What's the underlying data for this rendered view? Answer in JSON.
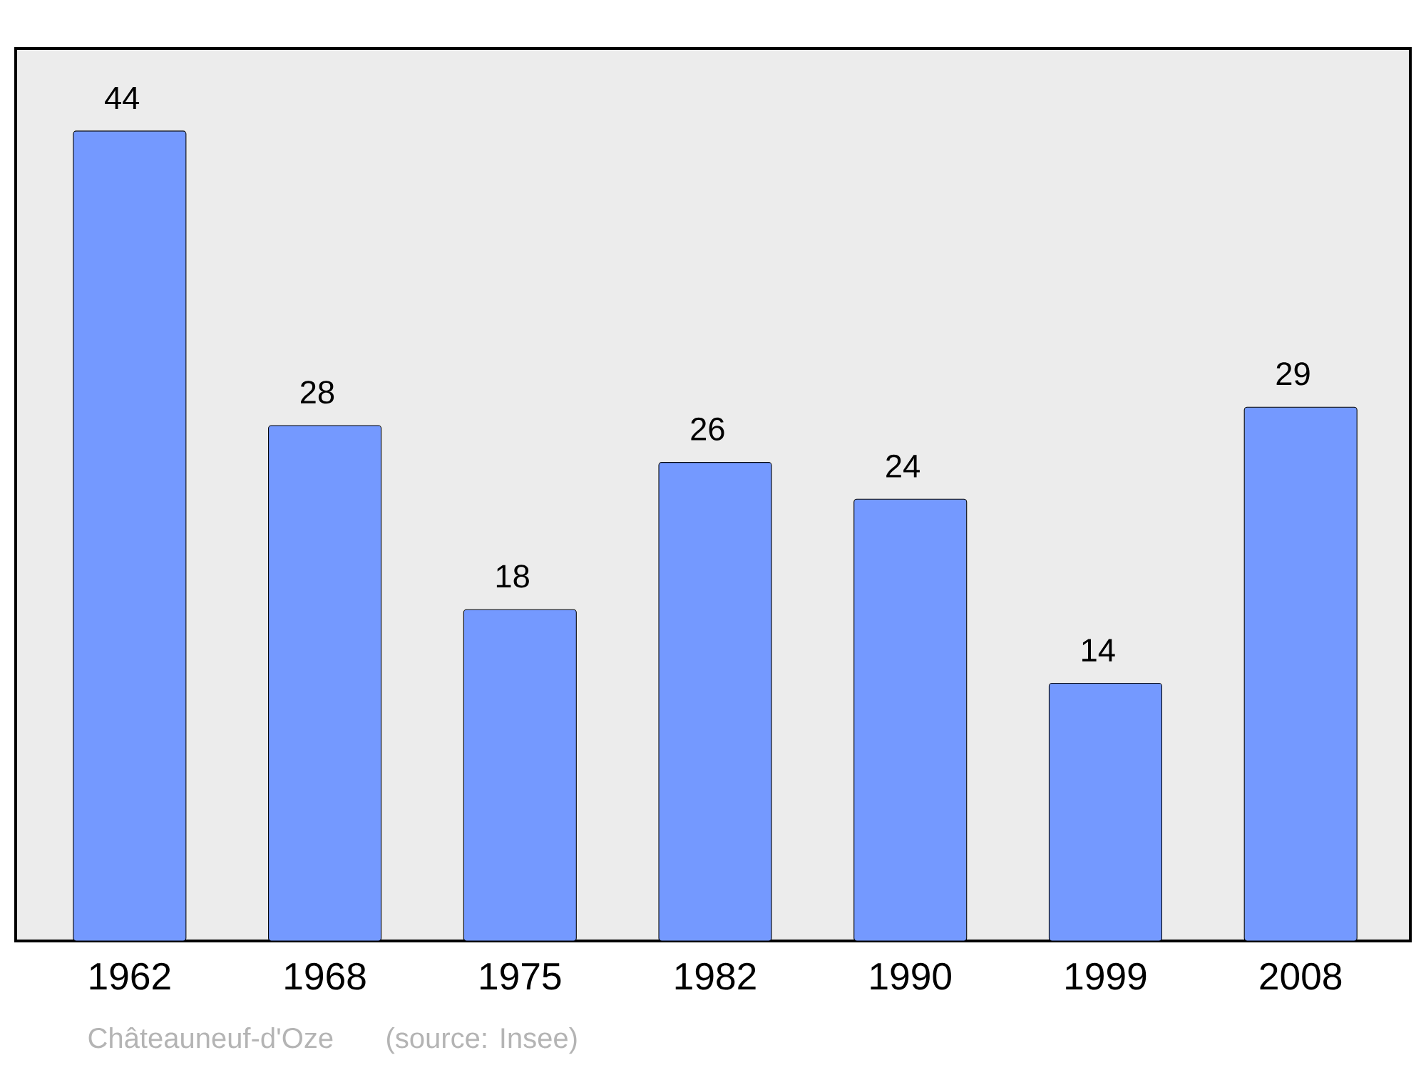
{
  "chart_data": {
    "type": "bar",
    "categories": [
      "1962",
      "1968",
      "1975",
      "1982",
      "1990",
      "1999",
      "2008"
    ],
    "values": [
      44,
      28,
      18,
      26,
      24,
      14,
      29
    ],
    "color": "#7499ff",
    "data_labels": true,
    "annotations": [
      "Châteauneuf-d'Oze",
      "(source: Insee)"
    ]
  }
}
